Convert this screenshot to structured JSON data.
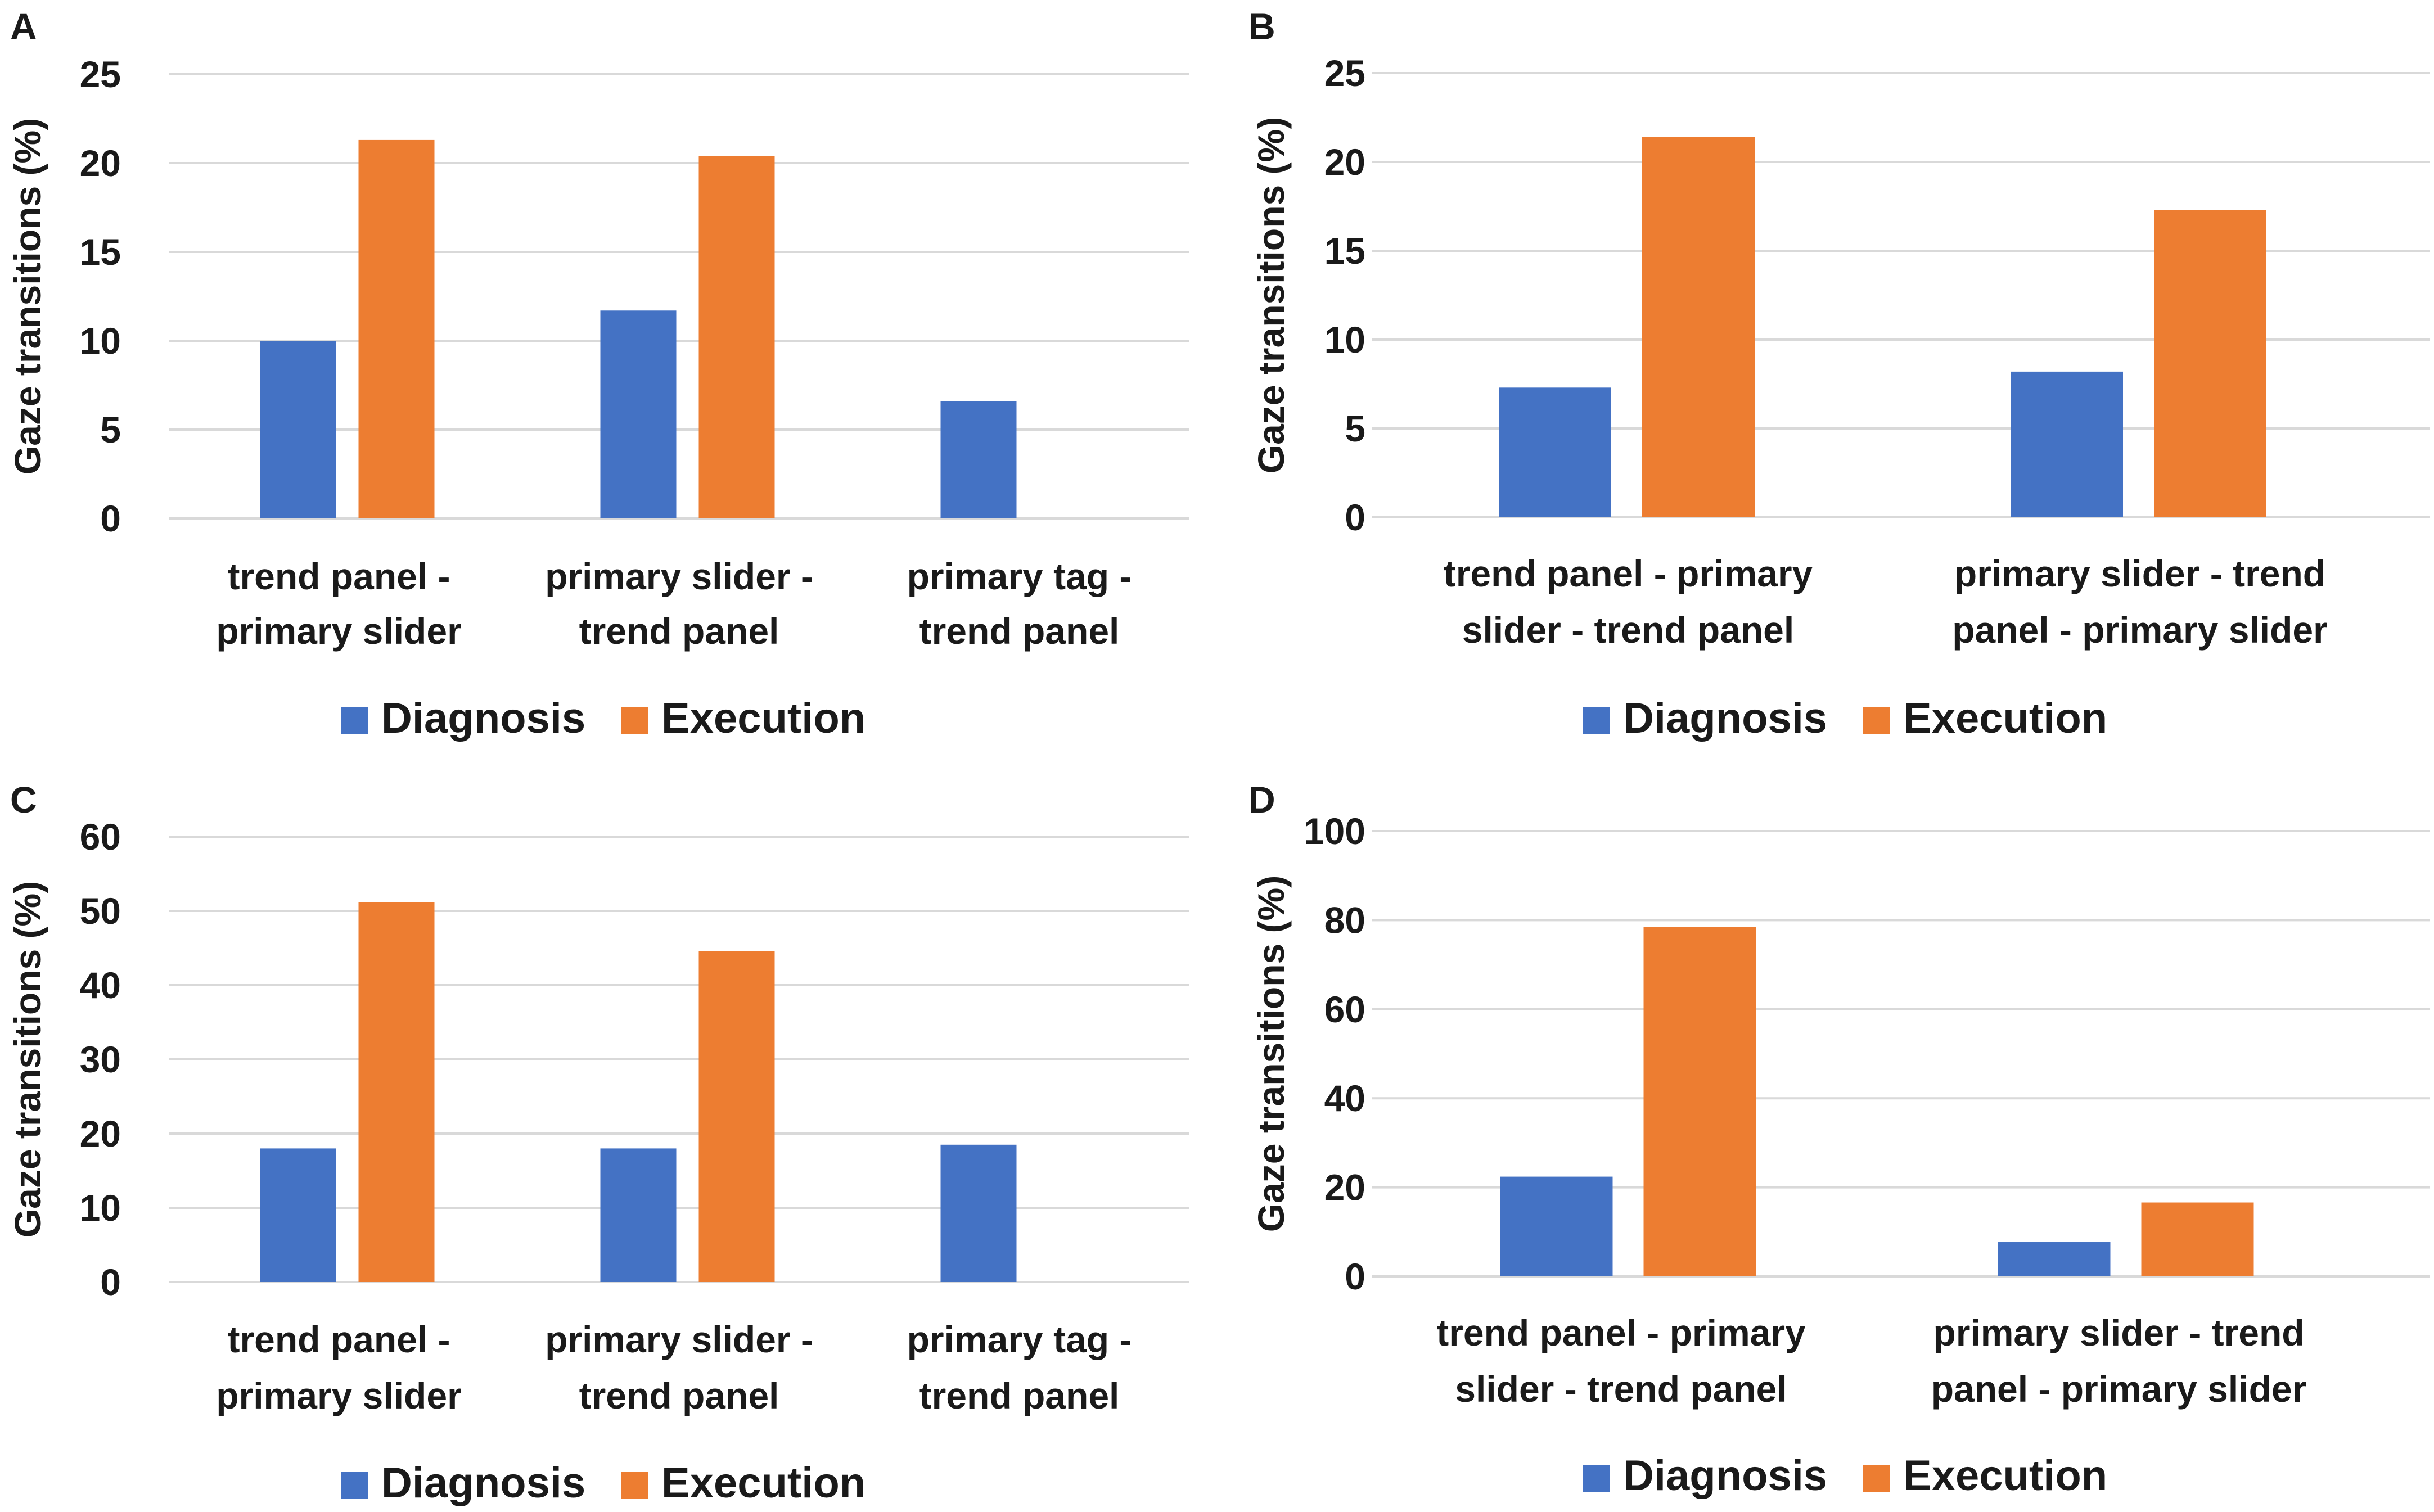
{
  "colors": {
    "diagnosis": "#4472C4",
    "execution": "#ED7D31",
    "grid": "#D9D9D9",
    "text": "#1a1a1a"
  },
  "chart_data": [
    {
      "panel": "A",
      "type": "bar",
      "ylabel": "Gaze transitions (%)",
      "ylim": [
        0,
        25
      ],
      "yticks": [
        "0",
        "5",
        "10",
        "15",
        "20",
        "25"
      ],
      "categories": [
        [
          "trend panel -",
          "primary slider"
        ],
        [
          "primary slider -",
          "trend panel"
        ],
        [
          "primary tag -",
          "trend panel"
        ]
      ],
      "series": [
        {
          "name": "Diagnosis",
          "values": [
            10.0,
            11.7,
            6.6
          ]
        },
        {
          "name": "Execution",
          "values": [
            21.3,
            20.4,
            0
          ]
        }
      ]
    },
    {
      "panel": "B",
      "type": "bar",
      "ylabel": "Gaze transitions (%)",
      "ylim": [
        0,
        25
      ],
      "yticks": [
        "0",
        "5",
        "10",
        "15",
        "20",
        "25"
      ],
      "categories": [
        [
          "trend panel - primary",
          "slider - trend panel"
        ],
        [
          "primary slider - trend",
          "panel - primary slider"
        ]
      ],
      "series": [
        {
          "name": "Diagnosis",
          "values": [
            7.3,
            8.2
          ]
        },
        {
          "name": "Execution",
          "values": [
            21.4,
            17.3
          ]
        }
      ]
    },
    {
      "panel": "C",
      "type": "bar",
      "ylabel": "Gaze transitions (%)",
      "ylim": [
        0,
        60
      ],
      "yticks": [
        "0",
        "10",
        "20",
        "30",
        "40",
        "50",
        "60"
      ],
      "categories": [
        [
          "trend panel -",
          "primary slider"
        ],
        [
          "primary slider -",
          "trend panel"
        ],
        [
          "primary tag -",
          "trend panel"
        ]
      ],
      "series": [
        {
          "name": "Diagnosis",
          "values": [
            18.0,
            18.0,
            18.5
          ]
        },
        {
          "name": "Execution",
          "values": [
            51.2,
            44.6,
            0
          ]
        }
      ]
    },
    {
      "panel": "D",
      "type": "bar",
      "ylabel": "Gaze transitions (%)",
      "ylim": [
        0,
        100
      ],
      "yticks": [
        "0",
        "20",
        "40",
        "60",
        "80",
        "100"
      ],
      "categories": [
        [
          "trend panel - primary",
          "slider - trend panel"
        ],
        [
          "primary slider - trend",
          "panel - primary slider"
        ]
      ],
      "series": [
        {
          "name": "Diagnosis",
          "values": [
            22.4,
            7.7
          ]
        },
        {
          "name": "Execution",
          "values": [
            78.5,
            16.6
          ]
        }
      ]
    }
  ]
}
